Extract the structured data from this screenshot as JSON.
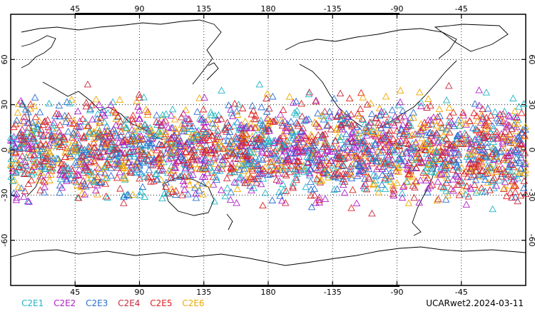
{
  "map": {
    "lon_ticks": [
      "45",
      "90",
      "135",
      "180",
      "-135",
      "-90",
      "-45"
    ],
    "lat_ticks": [
      "60",
      "30",
      "0",
      "-30",
      "-60"
    ],
    "grid": "dotted",
    "marker": "open-triangle",
    "lat_coverage_deg": [
      -45,
      45
    ]
  },
  "legend": [
    {
      "label": "C2E1",
      "color": "#1fb5c6"
    },
    {
      "label": "C2E2",
      "color": "#b020c8"
    },
    {
      "label": "C2E3",
      "color": "#2a6fd0"
    },
    {
      "label": "C2E4",
      "color": "#c8283c"
    },
    {
      "label": "C2E5",
      "color": "#e02020"
    },
    {
      "label": "C2E6",
      "color": "#f0a800"
    }
  ],
  "credit": "UCARwet2.2024-03-11"
}
